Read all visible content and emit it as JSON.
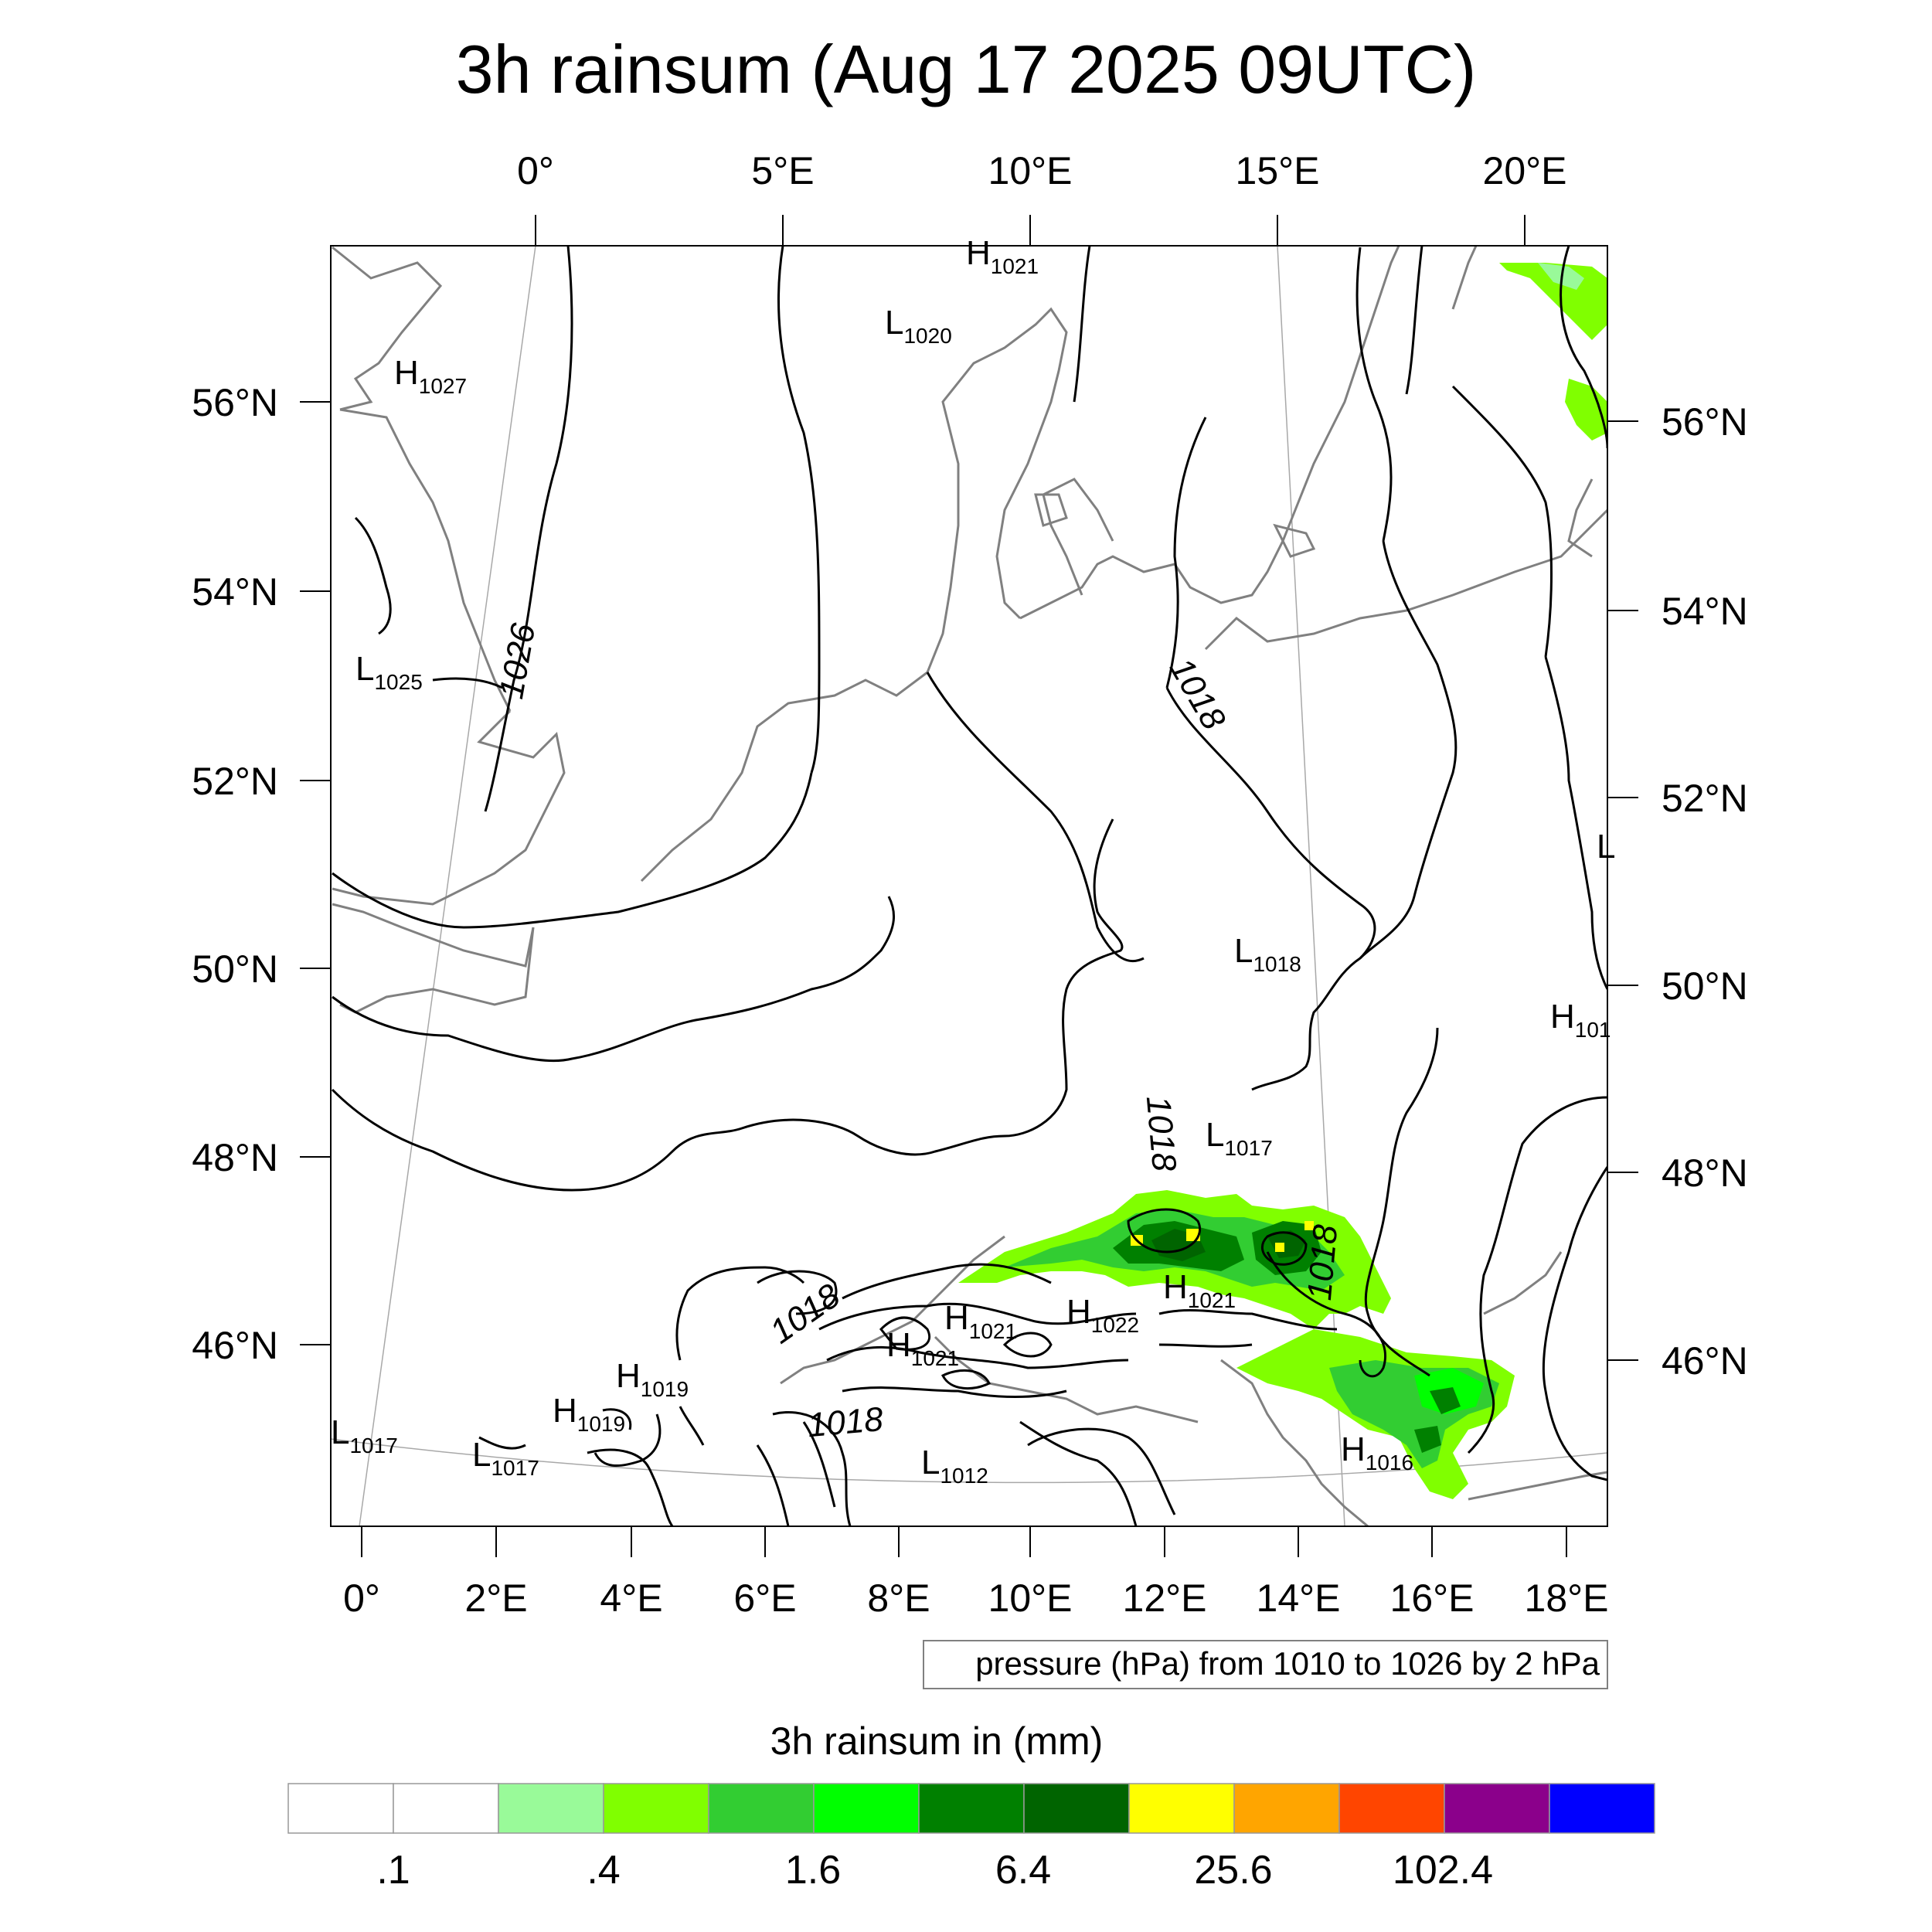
{
  "title": "3h rainsum (Aug 17 2025 09UTC)",
  "top_axis_labels": [
    "0°",
    "5°E",
    "10°E",
    "15°E",
    "20°E"
  ],
  "bottom_axis_labels": [
    "0°",
    "2°E",
    "4°E",
    "6°E",
    "8°E",
    "10°E",
    "12°E",
    "14°E",
    "16°E",
    "18°E"
  ],
  "left_axis_labels": [
    "56°N",
    "54°N",
    "52°N",
    "50°N",
    "48°N",
    "46°N"
  ],
  "right_axis_labels": [
    "56°N",
    "54°N",
    "52°N",
    "50°N",
    "48°N",
    "46°N"
  ],
  "pressure_centers": [
    {
      "letter": "H",
      "value": "1021"
    },
    {
      "letter": "L",
      "value": "1020"
    },
    {
      "letter": "H",
      "value": "1027"
    },
    {
      "letter": "L",
      "value": "1025"
    },
    {
      "letter": "L",
      "value": "1018"
    },
    {
      "letter": "H",
      "value": "101"
    },
    {
      "letter": "L",
      "value": "1017"
    },
    {
      "letter": "H",
      "value": "1021"
    },
    {
      "letter": "H",
      "value": "1021"
    },
    {
      "letter": "H",
      "value": "1022"
    },
    {
      "letter": "H",
      "value": "1021"
    },
    {
      "letter": "H",
      "value": "1019"
    },
    {
      "letter": "H",
      "value": "1019"
    },
    {
      "letter": "L",
      "value": "1017"
    },
    {
      "letter": "L",
      "value": "1017"
    },
    {
      "letter": "L",
      "value": "1012"
    },
    {
      "letter": "H",
      "value": "1016"
    },
    {
      "letter": "L",
      "value": ""
    }
  ],
  "contour_labels": [
    "1026",
    "1018",
    "1018",
    "1018",
    "1018",
    "1018"
  ],
  "pressure_note": "pressure (hPa) from 1010 to 1026 by 2 hPa",
  "colorbar": {
    "title": "3h rainsum in (mm)",
    "colors": [
      "#ffffff",
      "#ffffff",
      "#99fa99",
      "#80ff00",
      "#32cd32",
      "#00ff00",
      "#008000",
      "#006400",
      "#ffff00",
      "#ffa500",
      "#ff4500",
      "#8b008b",
      "#0000ff"
    ],
    "labels": [
      ".1",
      ".4",
      "1.6",
      "6.4",
      "25.6",
      "102.4"
    ]
  }
}
